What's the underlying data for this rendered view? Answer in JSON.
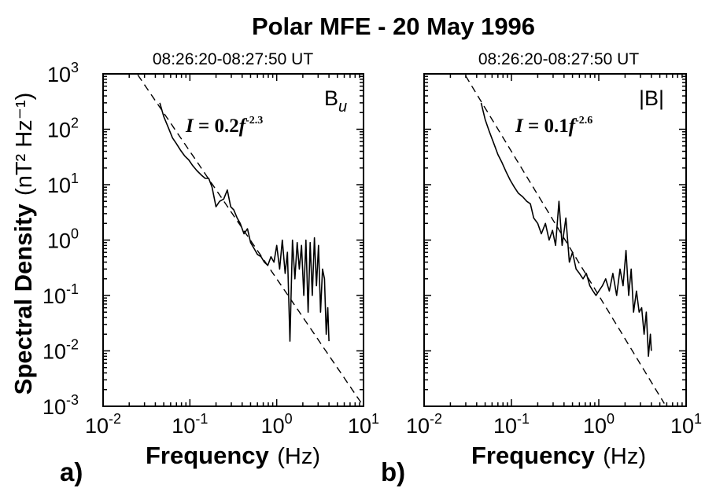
{
  "figure": {
    "title": "Polar MFE - 20 May 1996",
    "ylabel_bold": "Spectral Density",
    "ylabel_unit": "(nT² Hz⁻¹)",
    "xlabel_bold": "Frequency",
    "xlabel_unit": "(Hz)"
  },
  "chart_data": [
    {
      "type": "line",
      "panel_label": "a)",
      "subtitle": "08:26:20-08:27:50 UT",
      "component_label": "Bu",
      "fit_label": {
        "coef": "0.2",
        "exponent": "-2.3"
      },
      "x_scale": "log",
      "y_scale": "log",
      "xlim": [
        0.01,
        10
      ],
      "ylim": [
        0.001,
        1000
      ],
      "x_ticks": [
        {
          "base": "10",
          "exp": "-2"
        },
        {
          "base": "10",
          "exp": "-1"
        },
        {
          "base": "10",
          "exp": "0"
        },
        {
          "base": "10",
          "exp": "1"
        }
      ],
      "y_ticks": [
        {
          "base": "10",
          "exp": "-3"
        },
        {
          "base": "10",
          "exp": "-2"
        },
        {
          "base": "10",
          "exp": "-1"
        },
        {
          "base": "10",
          "exp": "0"
        },
        {
          "base": "10",
          "exp": "1"
        },
        {
          "base": "10",
          "exp": "2"
        },
        {
          "base": "10",
          "exp": "3"
        }
      ],
      "grid": false,
      "fit": {
        "coef": 0.2,
        "exponent": -2.3,
        "style": "dashed"
      },
      "series": [
        {
          "style": "solid",
          "x": [
            0.045,
            0.05,
            0.056,
            0.063,
            0.07,
            0.078,
            0.087,
            0.097,
            0.108,
            0.12,
            0.135,
            0.15,
            0.165,
            0.18,
            0.2,
            0.22,
            0.245,
            0.27,
            0.295,
            0.32,
            0.35,
            0.38,
            0.42,
            0.46,
            0.5,
            0.55,
            0.6,
            0.66,
            0.72,
            0.79,
            0.86,
            0.93,
            1.0,
            1.08,
            1.16,
            1.25,
            1.33,
            1.42,
            1.52,
            1.62,
            1.72,
            1.82,
            1.93,
            2.05,
            2.17,
            2.3,
            2.43,
            2.57,
            2.72,
            2.87,
            3.03,
            3.2,
            3.37,
            3.55,
            3.72,
            3.88,
            4.0
          ],
          "y": [
            300,
            170,
            110,
            70,
            55,
            42,
            33,
            28,
            22,
            18,
            15,
            13,
            13,
            9,
            4,
            5,
            5.5,
            8,
            4,
            3.5,
            2.5,
            2.0,
            1.3,
            1.6,
            0.9,
            0.7,
            0.55,
            0.5,
            0.4,
            0.35,
            0.5,
            0.4,
            0.8,
            0.3,
            1.0,
            0.25,
            0.6,
            0.015,
            1.0,
            0.2,
            0.9,
            0.3,
            0.8,
            0.1,
            1.0,
            0.05,
            0.9,
            0.1,
            1.1,
            0.15,
            0.8,
            0.05,
            0.3,
            0.2,
            0.02,
            0.06,
            0.015
          ]
        }
      ]
    },
    {
      "type": "line",
      "panel_label": "b)",
      "subtitle": "08:26:20-08:27:50 UT",
      "component_label": "|B|",
      "fit_label": {
        "coef": "0.1",
        "exponent": "-2.6"
      },
      "x_scale": "log",
      "y_scale": "log",
      "xlim": [
        0.01,
        10
      ],
      "ylim": [
        0.001,
        1000
      ],
      "x_ticks": [
        {
          "base": "10",
          "exp": "-2"
        },
        {
          "base": "10",
          "exp": "-1"
        },
        {
          "base": "10",
          "exp": "0"
        },
        {
          "base": "10",
          "exp": "1"
        }
      ],
      "y_ticks": [],
      "grid": false,
      "fit": {
        "coef": 0.1,
        "exponent": -2.6,
        "style": "dashed"
      },
      "series": [
        {
          "style": "solid",
          "x": [
            0.045,
            0.05,
            0.056,
            0.063,
            0.07,
            0.078,
            0.087,
            0.097,
            0.108,
            0.12,
            0.135,
            0.15,
            0.165,
            0.18,
            0.2,
            0.22,
            0.245,
            0.27,
            0.295,
            0.32,
            0.35,
            0.38,
            0.42,
            0.46,
            0.5,
            0.55,
            0.6,
            0.66,
            0.72,
            0.79,
            0.86,
            0.93,
            1.0,
            1.1,
            1.2,
            1.32,
            1.45,
            1.6,
            1.75,
            1.9,
            2.05,
            2.2,
            2.35,
            2.5,
            2.7,
            2.9,
            3.1,
            3.3,
            3.5,
            3.7,
            3.9,
            4.0
          ],
          "y": [
            300,
            150,
            90,
            55,
            35,
            25,
            17,
            12,
            9,
            7,
            6,
            5,
            4.5,
            2.5,
            2,
            1.3,
            2.0,
            1.0,
            1.5,
            0.8,
            5.0,
            0.8,
            2.5,
            0.4,
            0.6,
            0.3,
            0.25,
            0.2,
            0.25,
            0.15,
            0.12,
            0.1,
            0.12,
            0.15,
            0.2,
            0.12,
            0.25,
            0.1,
            0.3,
            0.15,
            0.65,
            0.1,
            0.3,
            0.05,
            0.12,
            0.05,
            0.06,
            0.02,
            0.05,
            0.008,
            0.02,
            0.01
          ]
        }
      ]
    }
  ]
}
